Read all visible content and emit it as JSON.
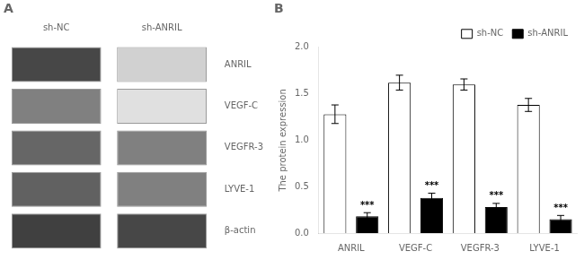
{
  "chart_data": [
    {
      "type": "heatmap",
      "title": "A",
      "categories": [
        "sh-NC",
        "sh-ANRIL"
      ],
      "rows": [
        "ANRIL",
        "VEGF-C",
        "VEGFR-3",
        "LYVE-1",
        "β-actin"
      ],
      "cells": [
        [
          0.72,
          0.18
        ],
        [
          0.5,
          0.12
        ],
        [
          0.6,
          0.5
        ],
        [
          0.62,
          0.5
        ],
        [
          0.75,
          0.72
        ]
      ],
      "grid": false
    },
    {
      "type": "bar",
      "title": "B",
      "categories": [
        "ANRIL",
        "VEGF-C",
        "VEGFR-3",
        "LYVE-1"
      ],
      "series": [
        {
          "name": "sh-NC",
          "color": "#ffffff",
          "values": [
            1.28,
            1.62,
            1.6,
            1.38
          ],
          "errors": [
            0.1,
            0.08,
            0.06,
            0.07
          ]
        },
        {
          "name": "sh-ANRIL",
          "color": "#000000",
          "values": [
            0.18,
            0.38,
            0.28,
            0.15
          ],
          "errors": [
            0.04,
            0.05,
            0.04,
            0.04
          ],
          "annotations": [
            "***",
            "***",
            "***",
            "***"
          ]
        }
      ],
      "ylabel": "The protein expression",
      "ylim": [
        0.0,
        2.0
      ],
      "yticks": [
        {
          "value": 0.0,
          "label": "0.0"
        },
        0.5,
        {
          "value": 1.0,
          "label": "1.0"
        },
        1.5,
        {
          "value": 2.0,
          "label": "2.0"
        }
      ],
      "grid": false,
      "legend": "upper right"
    }
  ]
}
